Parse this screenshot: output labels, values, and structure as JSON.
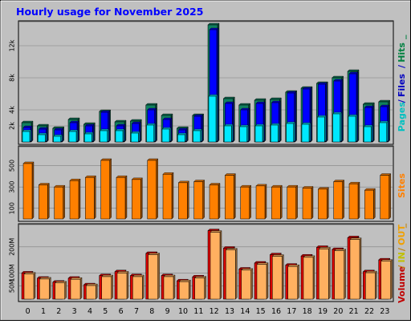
{
  "chart_data": {
    "title": "Hourly usage for November 2025",
    "categories": [
      "0",
      "1",
      "2",
      "3",
      "4",
      "5",
      "6",
      "7",
      "8",
      "9",
      "10",
      "11",
      "12",
      "13",
      "14",
      "15",
      "16",
      "17",
      "18",
      "19",
      "20",
      "21",
      "22",
      "23"
    ],
    "panels": [
      {
        "name": "requests",
        "type": "bar",
        "ylim": [
          0,
          14500
        ],
        "yticks": [
          {
            "value": 2000,
            "label": "2k"
          },
          {
            "value": 4000,
            "label": "4k"
          },
          {
            "value": 8000,
            "label": "8k"
          },
          {
            "value": 12000,
            "label": "12k"
          }
        ],
        "right_labels": [
          {
            "text": "Pages",
            "color": "#00c0c0"
          },
          {
            "text": "/",
            "color": "#0000c0"
          },
          {
            "text": "Files",
            "color": "#0000c0"
          },
          {
            "text": "/",
            "color": "#0000c0"
          },
          {
            "text": "Hits",
            "color": "#008040"
          },
          {
            "text": "_",
            "color": "#008040"
          }
        ],
        "series": [
          {
            "name": "Hits",
            "color": "#108060",
            "values": [
              2400,
              2000,
              1700,
              2800,
              2200,
              3800,
              2500,
              2600,
              4600,
              3300,
              1700,
              3300,
              14600,
              5400,
              4600,
              5200,
              5300,
              6200,
              6700,
              7300,
              8000,
              8800,
              4700,
              5000
            ]
          },
          {
            "name": "Files",
            "color": "#0000ff",
            "values": [
              1800,
              1600,
              1500,
              2400,
              2000,
              3700,
              2000,
              2300,
              4000,
              2800,
              1500,
              3200,
              14000,
              4800,
              4000,
              4800,
              4900,
              6100,
              6600,
              7200,
              7600,
              8500,
              4300,
              4400
            ]
          },
          {
            "name": "Pages",
            "color": "#00e8ff",
            "values": [
              1300,
              900,
              700,
              1300,
              1000,
              1400,
              1400,
              1100,
              2100,
              1600,
              900,
              1400,
              5700,
              2000,
              1900,
              2000,
              2100,
              2300,
              2200,
              3100,
              3500,
              3200,
              1900,
              2400
            ]
          }
        ]
      },
      {
        "name": "sites",
        "type": "bar",
        "ylim": [
          0,
          640
        ],
        "yticks": [
          {
            "value": 100,
            "label": "100"
          },
          {
            "value": 300,
            "label": "300"
          },
          {
            "value": 500,
            "label": "500"
          }
        ],
        "right_labels": [
          {
            "text": "Sites",
            "color": "#ff8000"
          }
        ],
        "series": [
          {
            "name": "Sites",
            "color": "#ff8000",
            "values": [
              520,
              320,
              300,
              360,
              390,
              550,
              390,
              370,
              550,
              420,
              340,
              350,
              320,
              410,
              300,
              310,
              300,
              300,
              290,
              280,
              350,
              330,
              270,
              410
            ]
          }
        ]
      },
      {
        "name": "volume",
        "type": "bar",
        "ylim": [
          0,
          270
        ],
        "yticks": [
          {
            "value": 50,
            "label": "50M"
          },
          {
            "value": 100,
            "label": "100M"
          },
          {
            "value": 200,
            "label": "200M"
          }
        ],
        "right_labels": [
          {
            "text": "Volume",
            "color": "#c00000"
          },
          {
            "text": "/",
            "color": "#c08000"
          },
          {
            "text": "IN",
            "color": "#c0c000"
          },
          {
            "text": "/",
            "color": "#c08000"
          },
          {
            "text": "OUT",
            "color": "#f0a000"
          },
          {
            "text": "_",
            "color": "#c08000"
          }
        ],
        "series": [
          {
            "name": "Volume",
            "color": "#d80000",
            "values": [
              100,
              80,
              65,
              80,
              55,
              90,
              105,
              90,
              175,
              90,
              70,
              85,
              262,
              195,
              115,
              138,
              170,
              130,
              165,
              198,
              190,
              235,
              105,
              150
            ]
          },
          {
            "name": "OUT",
            "color": "#ffb060",
            "values": [
              96,
              77,
              62,
              76,
              52,
              86,
              100,
              86,
              170,
              86,
              67,
              81,
              256,
              188,
              111,
              133,
              164,
              125,
              160,
              192,
              185,
              228,
              101,
              145
            ]
          }
        ]
      }
    ]
  }
}
